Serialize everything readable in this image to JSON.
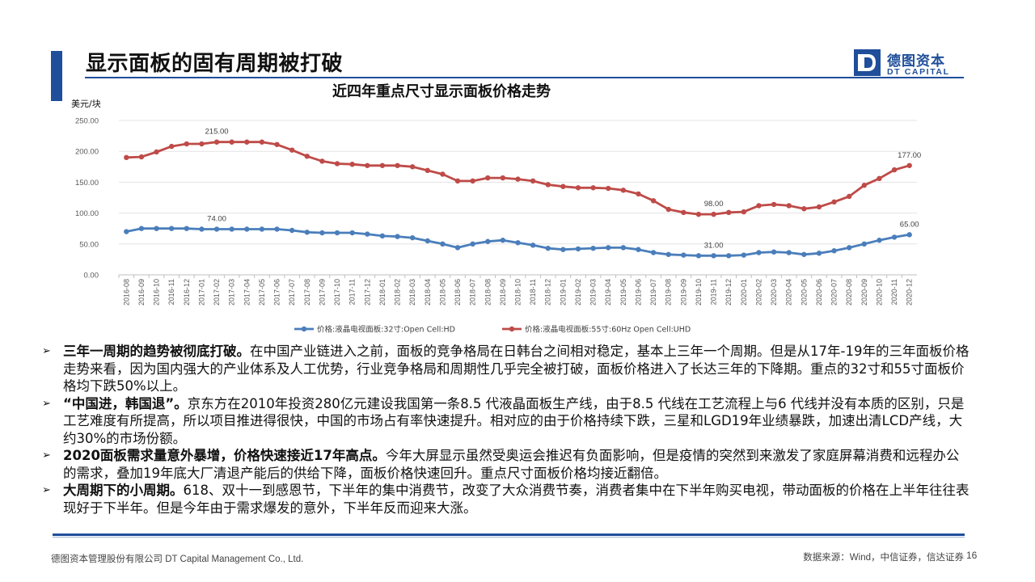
{
  "slide": {
    "title": "显示面板的固有周期被打破",
    "logo_cn": "德图资本",
    "logo_en": "DT CAPITAL",
    "logo_letter": "D"
  },
  "chart_data": {
    "type": "line",
    "title": "近四年重点尺寸显示面板价格走势",
    "ylabel": "美元/块",
    "xlabel": "",
    "ylim": [
      0,
      250
    ],
    "yticks": [
      "0.00",
      "50.00",
      "100.00",
      "150.00",
      "200.00",
      "250.00"
    ],
    "grid": true,
    "legend_position": "bottom",
    "categories": [
      "2016-08",
      "2016-09",
      "2016-10",
      "2016-11",
      "2016-12",
      "2017-01",
      "2017-02",
      "2017-03",
      "2017-04",
      "2017-05",
      "2017-06",
      "2017-07",
      "2017-08",
      "2017-09",
      "2017-10",
      "2017-11",
      "2017-12",
      "2018-01",
      "2018-02",
      "2018-03",
      "2018-04",
      "2018-05",
      "2018-06",
      "2018-07",
      "2018-08",
      "2018-09",
      "2018-10",
      "2018-11",
      "2018-12",
      "2019-01",
      "2019-02",
      "2019-03",
      "2019-04",
      "2019-05",
      "2019-06",
      "2019-07",
      "2019-08",
      "2019-09",
      "2019-10",
      "2019-11",
      "2019-12",
      "2020-01",
      "2020-02",
      "2020-03",
      "2020-04",
      "2020-05",
      "2020-06",
      "2020-07",
      "2020-08",
      "2020-09",
      "2020-10",
      "2020-11",
      "2020-12"
    ],
    "series": [
      {
        "name": "价格:液晶电视面板:32寸:Open Cell:HD",
        "color": "#4a7ebb",
        "values": [
          70,
          75,
          75,
          75,
          75,
          74,
          74,
          74,
          74,
          74,
          74,
          72,
          69,
          68,
          68,
          68,
          66,
          63,
          62,
          60,
          55,
          50,
          44,
          50,
          54,
          56,
          52,
          48,
          43,
          41,
          42,
          43,
          44,
          44,
          41,
          36,
          33,
          32,
          31,
          31,
          31,
          32,
          36,
          37,
          36,
          33,
          35,
          39,
          44,
          50,
          56,
          61,
          65
        ],
        "labels": [
          {
            "index": 6,
            "text": "74.00"
          },
          {
            "index": 39,
            "text": "31.00"
          },
          {
            "index": 52,
            "text": "65.00"
          }
        ]
      },
      {
        "name": "价格:液晶电视面板:55寸:60Hz Open Cell:UHD",
        "color": "#be4b48",
        "values": [
          190,
          191,
          199,
          208,
          212,
          212,
          215,
          215,
          215,
          215,
          211,
          202,
          192,
          184,
          180,
          179,
          177,
          177,
          177,
          175,
          169,
          163,
          152,
          152,
          157,
          157,
          155,
          152,
          146,
          143,
          141,
          141,
          140,
          137,
          131,
          120,
          106,
          101,
          98,
          98,
          101,
          102,
          112,
          114,
          112,
          107,
          110,
          118,
          127,
          145,
          156,
          170,
          177
        ],
        "labels": [
          {
            "index": 6,
            "text": "215.00"
          },
          {
            "index": 39,
            "text": "98.00"
          },
          {
            "index": 52,
            "text": "177.00"
          }
        ]
      }
    ]
  },
  "bullets": [
    {
      "marker": "➢",
      "bold": "三年一周期的趋势被彻底打破。",
      "text": "在中国产业链进入之前，面板的竞争格局在日韩台之间相对稳定，基本上三年一个周期。但是从17年-19年的三年面板价格走势来看，因为国内强大的产业体系及人工优势，行业竞争格局和周期性几乎完全被打破，面板价格进入了长达三年的下降期。重点的32寸和55寸面板价格均下跌50%以上。"
    },
    {
      "marker": "➢",
      "bold": "“中国进，韩国退”。",
      "text": "京东方在2010年投资280亿元建设我国第一条8.5 代液晶面板生产线，由于8.5 代线在工艺流程上与6 代线并没有本质的区别，只是工艺难度有所提高，所以项目推进得很快，中国的市场占有率快速提升。相对应的由于价格持续下跌，三星和LGD19年业绩暴跌，加速出清LCD产线，大约30%的市场份额。"
    },
    {
      "marker": "➢",
      "bold": "2020面板需求量意外暴增，价格快速接近17年高点。",
      "text": "今年大屏显示虽然受奥运会推迟有负面影响，但是疫情的突然到来激发了家庭屏幕消费和远程办公的需求，叠加19年底大厂清退产能后的供给下降，面板价格快速回升。重点尺寸面板价格均接近翻倍。"
    },
    {
      "marker": "➢",
      "bold": "大周期下的小周期。",
      "text": "618、双十一到感恩节，下半年的集中消费节，改变了大众消费节奏，消费者集中在下半年购买电视，带动面板的价格在上半年往往表现好于下半年。但是今年由于需求爆发的意外，下半年反而迎来大涨。"
    }
  ],
  "footer": {
    "company": "德图资本管理股份有限公司  DT Capital  Management  Co., Ltd.",
    "source": "数据来源：Wind，中信证券，信达证券",
    "page": "16"
  }
}
